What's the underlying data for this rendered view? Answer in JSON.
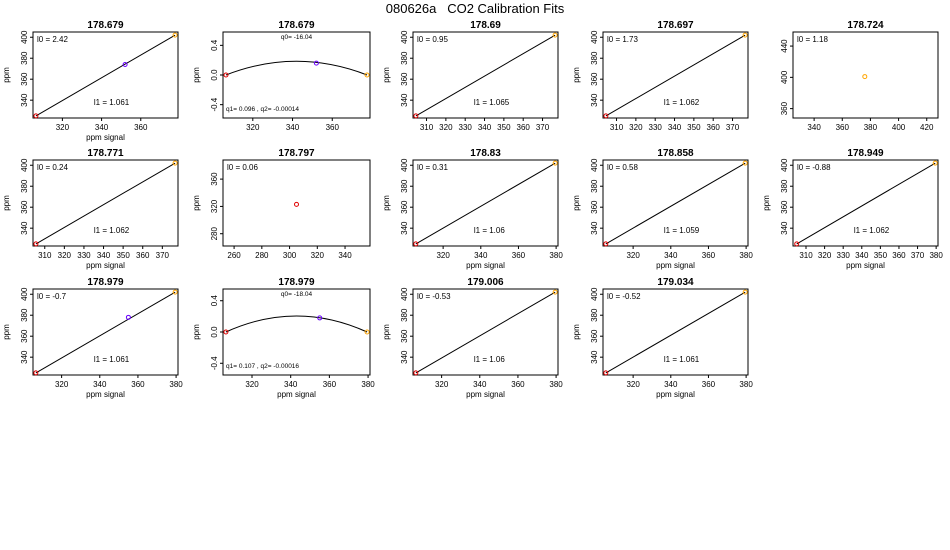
{
  "title": "080626a   CO2 Calibration Fits",
  "chart_data": [
    {
      "type": "line",
      "title": "178.679",
      "fit": "linear",
      "xlabel": "ppm signal",
      "ylabel": "ppm",
      "xlim": [
        305,
        379
      ],
      "ylim": [
        323,
        405
      ],
      "xticks": [
        320,
        340,
        360
      ],
      "yticks": [
        340,
        360,
        380,
        400
      ],
      "points": [
        {
          "x": 306.5,
          "y": 325,
          "color": "#e00000"
        },
        {
          "x": 352,
          "y": 374,
          "color": "#6a00ff"
        },
        {
          "x": 377.5,
          "y": 402,
          "color": "#ffa500"
        }
      ],
      "intercept_label": "l0 = ",
      "intercept": "2.42",
      "slope_label": "l1 = ",
      "slope": "1.061",
      "l0": 2.42,
      "l1": 1.061
    },
    {
      "type": "line",
      "title": "178.679",
      "fit": "quadratic",
      "xlabel": "",
      "ylabel": "ppm",
      "xlim": [
        305,
        379
      ],
      "ylim": [
        -0.58,
        0.58
      ],
      "xticks": [
        320,
        340,
        360
      ],
      "yticks": [
        -0.4,
        0.0,
        0.4
      ],
      "points": [
        {
          "x": 306.5,
          "y": 0,
          "color": "#e00000"
        },
        {
          "x": 352,
          "y": 0.16,
          "color": "#6a00ff"
        },
        {
          "x": 377.5,
          "y": 0,
          "color": "#ffa500"
        }
      ],
      "q0_label": "q0= ",
      "q0": "-16.04",
      "q1_label": "q1= ",
      "q1": "0.096",
      "q2_label": " , q2= ",
      "q2": "-0.00014",
      "vertex_x": 342,
      "vertex_y": 0.185
    },
    {
      "type": "line",
      "title": "178.69",
      "fit": "linear",
      "xlabel": "",
      "ylabel": "ppm",
      "xlim": [
        303,
        378
      ],
      "ylim": [
        323,
        405
      ],
      "xticks": [
        310,
        320,
        330,
        340,
        350,
        360,
        370
      ],
      "yticks": [
        340,
        360,
        380,
        400
      ],
      "points": [
        {
          "x": 304.5,
          "y": 325,
          "color": "#e00000"
        },
        {
          "x": 376.5,
          "y": 402,
          "color": "#ffa500"
        }
      ],
      "intercept_label": "l0 = ",
      "intercept": "0.95",
      "slope_label": "l1 = ",
      "slope": "1.065",
      "l0": 0.95,
      "l1": 1.065
    },
    {
      "type": "line",
      "title": "178.697",
      "fit": "linear",
      "xlabel": "",
      "ylabel": "ppm",
      "xlim": [
        303,
        378
      ],
      "ylim": [
        323,
        405
      ],
      "xticks": [
        310,
        320,
        330,
        340,
        350,
        360,
        370
      ],
      "yticks": [
        340,
        360,
        380,
        400
      ],
      "points": [
        {
          "x": 304.5,
          "y": 325,
          "color": "#e00000"
        },
        {
          "x": 376.5,
          "y": 402,
          "color": "#ffa500"
        }
      ],
      "intercept_label": "l0 = ",
      "intercept": "1.73",
      "slope_label": "l1 = ",
      "slope": "1.062",
      "l0": 1.73,
      "l1": 1.062
    },
    {
      "type": "scatter",
      "title": "178.724",
      "fit": "none",
      "xlabel": "",
      "ylabel": "",
      "xlim": [
        325,
        428
      ],
      "ylim": [
        348,
        458
      ],
      "xticks": [
        340,
        360,
        380,
        400,
        420
      ],
      "yticks": [
        360,
        400,
        440
      ],
      "points": [
        {
          "x": 376,
          "y": 401,
          "color": "#ffa500"
        }
      ],
      "intercept_label": "l0 = ",
      "intercept": "1.18"
    },
    {
      "type": "line",
      "title": "178.771",
      "fit": "linear",
      "xlabel": "ppm signal",
      "ylabel": "ppm",
      "xlim": [
        304,
        378
      ],
      "ylim": [
        323,
        405
      ],
      "xticks": [
        310,
        320,
        330,
        340,
        350,
        360,
        370
      ],
      "yticks": [
        340,
        360,
        380,
        400
      ],
      "points": [
        {
          "x": 305.5,
          "y": 325,
          "color": "#e00000"
        },
        {
          "x": 376.5,
          "y": 402,
          "color": "#ffa500"
        }
      ],
      "intercept_label": "l0 = ",
      "intercept": "0.24",
      "slope_label": "l1 = ",
      "slope": "1.062",
      "l0": 0.24,
      "l1": 1.062
    },
    {
      "type": "scatter",
      "title": "178.797",
      "fit": "none",
      "xlabel": "",
      "ylabel": "ppm",
      "xlim": [
        252,
        358
      ],
      "ylim": [
        262,
        388
      ],
      "xticks": [
        260,
        280,
        300,
        320,
        340
      ],
      "yticks": [
        280,
        320,
        360
      ],
      "points": [
        {
          "x": 305,
          "y": 323,
          "color": "#e00000"
        }
      ],
      "intercept_label": "l0 = ",
      "intercept": "0.06"
    },
    {
      "type": "line",
      "title": "178.83",
      "fit": "linear",
      "xlabel": "ppm signal",
      "ylabel": "ppm",
      "xlim": [
        304,
        381
      ],
      "ylim": [
        323,
        405
      ],
      "xticks": [
        320,
        340,
        360,
        380
      ],
      "yticks": [
        340,
        360,
        380,
        400
      ],
      "points": [
        {
          "x": 305.5,
          "y": 325,
          "color": "#e00000"
        },
        {
          "x": 379.5,
          "y": 402,
          "color": "#ffa500"
        }
      ],
      "intercept_label": "l0 = ",
      "intercept": "0.31",
      "slope_label": "l1 = ",
      "slope": "1.06",
      "l0": 0.31,
      "l1": 1.06
    },
    {
      "type": "line",
      "title": "178.858",
      "fit": "linear",
      "xlabel": "ppm signal",
      "ylabel": "ppm",
      "xlim": [
        304,
        381
      ],
      "ylim": [
        323,
        405
      ],
      "xticks": [
        320,
        340,
        360,
        380
      ],
      "yticks": [
        340,
        360,
        380,
        400
      ],
      "points": [
        {
          "x": 305.5,
          "y": 325,
          "color": "#e00000"
        },
        {
          "x": 379.5,
          "y": 402,
          "color": "#ffa500"
        }
      ],
      "intercept_label": "l0 = ",
      "intercept": "0.58",
      "slope_label": "l1 = ",
      "slope": "1.059",
      "l0": 0.58,
      "l1": 1.059
    },
    {
      "type": "line",
      "title": "178.949",
      "fit": "linear",
      "xlabel": "ppm signal",
      "ylabel": "ppm",
      "xlim": [
        303,
        381
      ],
      "ylim": [
        323,
        405
      ],
      "xticks": [
        310,
        320,
        330,
        340,
        350,
        360,
        370,
        380
      ],
      "yticks": [
        340,
        360,
        380,
        400
      ],
      "points": [
        {
          "x": 305,
          "y": 325,
          "color": "#e00000"
        },
        {
          "x": 379.5,
          "y": 402,
          "color": "#ffa500"
        }
      ],
      "intercept_label": "l0 = ",
      "intercept": "-0.88",
      "slope_label": "l1 = ",
      "slope": "1.062",
      "l0": -0.88,
      "l1": 1.062
    },
    {
      "type": "line",
      "title": "178.979",
      "fit": "linear",
      "xlabel": "ppm signal",
      "ylabel": "ppm",
      "xlim": [
        305,
        381
      ],
      "ylim": [
        323,
        405
      ],
      "xticks": [
        320,
        340,
        360,
        380
      ],
      "yticks": [
        340,
        360,
        380,
        400
      ],
      "points": [
        {
          "x": 306.5,
          "y": 325,
          "color": "#e00000"
        },
        {
          "x": 355,
          "y": 378,
          "color": "#6a00ff"
        },
        {
          "x": 379.5,
          "y": 402,
          "color": "#ffa500"
        }
      ],
      "intercept_label": "l0 = ",
      "intercept": "-0.7",
      "slope_label": "l1 = ",
      "slope": "1.061",
      "l0": -0.7,
      "l1": 1.061
    },
    {
      "type": "line",
      "title": "178.979",
      "fit": "quadratic",
      "xlabel": "ppm signal",
      "ylabel": "ppm",
      "xlim": [
        305,
        381
      ],
      "ylim": [
        -0.55,
        0.55
      ],
      "xticks": [
        320,
        340,
        360,
        380
      ],
      "yticks": [
        -0.4,
        0.0,
        0.4
      ],
      "points": [
        {
          "x": 306.5,
          "y": 0,
          "color": "#e00000"
        },
        {
          "x": 355,
          "y": 0.18,
          "color": "#6a00ff"
        },
        {
          "x": 379.5,
          "y": 0,
          "color": "#ffa500"
        }
      ],
      "q0_label": "q0= ",
      "q0": "-18.04",
      "q1_label": "q1= ",
      "q1": "0.107",
      "q2_label": " , q2= ",
      "q2": "-0.00016",
      "vertex_x": 343,
      "vertex_y": 0.205
    },
    {
      "type": "line",
      "title": "179.006",
      "fit": "linear",
      "xlabel": "ppm signal",
      "ylabel": "ppm",
      "xlim": [
        305,
        381
      ],
      "ylim": [
        323,
        405
      ],
      "xticks": [
        320,
        340,
        360,
        380
      ],
      "yticks": [
        340,
        360,
        380,
        400
      ],
      "points": [
        {
          "x": 306.5,
          "y": 325,
          "color": "#e00000"
        },
        {
          "x": 379.5,
          "y": 402,
          "color": "#ffa500"
        }
      ],
      "intercept_label": "l0 = ",
      "intercept": "-0.53",
      "slope_label": "l1 = ",
      "slope": "1.06",
      "l0": -0.53,
      "l1": 1.06
    },
    {
      "type": "line",
      "title": "179.034",
      "fit": "linear",
      "xlabel": "ppm signal",
      "ylabel": "ppm",
      "xlim": [
        304,
        381
      ],
      "ylim": [
        323,
        405
      ],
      "xticks": [
        320,
        340,
        360,
        380
      ],
      "yticks": [
        340,
        360,
        380,
        400
      ],
      "points": [
        {
          "x": 305.5,
          "y": 325,
          "color": "#e00000"
        },
        {
          "x": 379.5,
          "y": 402,
          "color": "#ffa500"
        }
      ],
      "intercept_label": "l0 = ",
      "intercept": "-0.52",
      "slope_label": "l1 = ",
      "slope": "1.061",
      "l0": -0.52,
      "l1": 1.061
    }
  ]
}
